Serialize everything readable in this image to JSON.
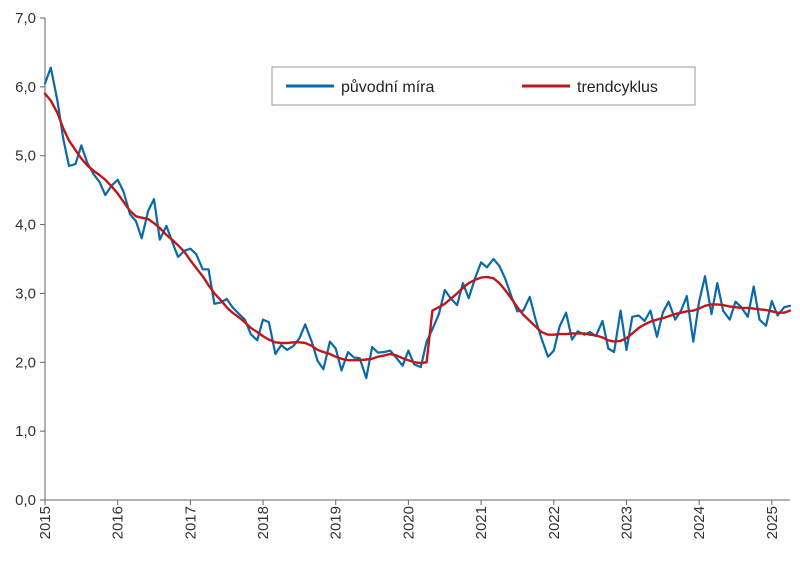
{
  "chart_data": {
    "type": "line",
    "ylim": [
      0,
      7
    ],
    "xlim": [
      2015,
      2025.25
    ],
    "y_ticks": [
      "0,0",
      "1,0",
      "2,0",
      "3,0",
      "4,0",
      "5,0",
      "6,0",
      "7,0"
    ],
    "x_ticks": [
      "2015",
      "2016",
      "2017",
      "2018",
      "2019",
      "2020",
      "2021",
      "2022",
      "2023",
      "2024",
      "2025"
    ],
    "grid": false,
    "legend_position": "top-right",
    "series": [
      {
        "name": "původní míra",
        "color": "#0a6aa8",
        "x": [
          2015.0,
          2015.08,
          2015.17,
          2015.25,
          2015.33,
          2015.42,
          2015.5,
          2015.58,
          2015.67,
          2015.75,
          2015.83,
          2015.92,
          2016.0,
          2016.08,
          2016.17,
          2016.25,
          2016.33,
          2016.42,
          2016.5,
          2016.58,
          2016.67,
          2016.75,
          2016.83,
          2016.92,
          2017.0,
          2017.08,
          2017.17,
          2017.25,
          2017.33,
          2017.42,
          2017.5,
          2017.58,
          2017.67,
          2017.75,
          2017.83,
          2017.92,
          2018.0,
          2018.08,
          2018.17,
          2018.25,
          2018.33,
          2018.42,
          2018.5,
          2018.58,
          2018.67,
          2018.75,
          2018.83,
          2018.92,
          2019.0,
          2019.08,
          2019.17,
          2019.25,
          2019.33,
          2019.42,
          2019.5,
          2019.58,
          2019.67,
          2019.75,
          2019.83,
          2019.92,
          2020.0,
          2020.08,
          2020.17,
          2020.25,
          2020.33,
          2020.42,
          2020.5,
          2020.58,
          2020.67,
          2020.75,
          2020.83,
          2020.92,
          2021.0,
          2021.08,
          2021.17,
          2021.25,
          2021.33,
          2021.42,
          2021.5,
          2021.58,
          2021.67,
          2021.75,
          2021.83,
          2021.92,
          2022.0,
          2022.08,
          2022.17,
          2022.25,
          2022.33,
          2022.42,
          2022.5,
          2022.58,
          2022.67,
          2022.75,
          2022.83,
          2022.92,
          2023.0,
          2023.08,
          2023.17,
          2023.25,
          2023.33,
          2023.42,
          2023.5,
          2023.58,
          2023.67,
          2023.75,
          2023.83,
          2023.92,
          2024.0,
          2024.08,
          2024.17,
          2024.25,
          2024.33,
          2024.42,
          2024.5,
          2024.58,
          2024.67,
          2024.75,
          2024.83,
          2024.92,
          2025.0,
          2025.08,
          2025.17,
          2025.25
        ],
        "y": [
          6.05,
          6.28,
          5.8,
          5.25,
          4.85,
          4.88,
          5.15,
          4.9,
          4.73,
          4.62,
          4.43,
          4.57,
          4.65,
          4.48,
          4.15,
          4.05,
          3.8,
          4.2,
          4.37,
          3.78,
          3.98,
          3.75,
          3.53,
          3.62,
          3.65,
          3.57,
          3.35,
          3.35,
          2.85,
          2.87,
          2.92,
          2.8,
          2.7,
          2.62,
          2.41,
          2.32,
          2.62,
          2.58,
          2.12,
          2.25,
          2.18,
          2.24,
          2.35,
          2.55,
          2.3,
          2.02,
          1.9,
          2.3,
          2.2,
          1.88,
          2.15,
          2.07,
          2.06,
          1.77,
          2.22,
          2.14,
          2.15,
          2.17,
          2.07,
          1.95,
          2.17,
          1.97,
          1.93,
          2.3,
          2.48,
          2.7,
          3.05,
          2.93,
          2.83,
          3.15,
          2.93,
          3.23,
          3.45,
          3.38,
          3.5,
          3.4,
          3.22,
          2.95,
          2.74,
          2.75,
          2.95,
          2.62,
          2.35,
          2.08,
          2.17,
          2.52,
          2.72,
          2.33,
          2.45,
          2.4,
          2.44,
          2.38,
          2.6,
          2.2,
          2.15,
          2.75,
          2.18,
          2.66,
          2.68,
          2.6,
          2.75,
          2.37,
          2.72,
          2.88,
          2.62,
          2.75,
          2.96,
          2.3,
          2.88,
          3.25,
          2.7,
          3.15,
          2.75,
          2.62,
          2.88,
          2.8,
          2.66,
          3.1,
          2.62,
          2.53,
          2.89,
          2.68,
          2.8,
          2.82
        ]
      },
      {
        "name": "trendcyklus",
        "color": "#c0171b",
        "x": [
          2015.0,
          2015.08,
          2015.17,
          2015.25,
          2015.33,
          2015.42,
          2015.5,
          2015.58,
          2015.67,
          2015.75,
          2015.83,
          2015.92,
          2016.0,
          2016.08,
          2016.17,
          2016.25,
          2016.33,
          2016.42,
          2016.5,
          2016.58,
          2016.67,
          2016.75,
          2016.83,
          2016.92,
          2017.0,
          2017.08,
          2017.17,
          2017.25,
          2017.33,
          2017.42,
          2017.5,
          2017.58,
          2017.67,
          2017.75,
          2017.83,
          2017.92,
          2018.0,
          2018.08,
          2018.17,
          2018.25,
          2018.33,
          2018.42,
          2018.5,
          2018.58,
          2018.67,
          2018.75,
          2018.83,
          2018.92,
          2019.0,
          2019.08,
          2019.17,
          2019.25,
          2019.33,
          2019.42,
          2019.5,
          2019.58,
          2019.67,
          2019.75,
          2019.83,
          2019.92,
          2020.0,
          2020.08,
          2020.17,
          2020.25,
          2020.33,
          2020.42,
          2020.5,
          2020.58,
          2020.67,
          2020.75,
          2020.83,
          2020.92,
          2021.0,
          2021.08,
          2021.17,
          2021.25,
          2021.33,
          2021.42,
          2021.5,
          2021.58,
          2021.67,
          2021.75,
          2021.83,
          2021.92,
          2022.0,
          2022.08,
          2022.17,
          2022.25,
          2022.33,
          2022.42,
          2022.5,
          2022.58,
          2022.67,
          2022.75,
          2022.83,
          2022.92,
          2023.0,
          2023.08,
          2023.17,
          2023.25,
          2023.33,
          2023.42,
          2023.5,
          2023.58,
          2023.67,
          2023.75,
          2023.83,
          2023.92,
          2024.0,
          2024.08,
          2024.17,
          2024.25,
          2024.33,
          2024.42,
          2024.5,
          2024.58,
          2024.67,
          2024.75,
          2024.83,
          2024.92,
          2025.0,
          2025.08,
          2025.17,
          2025.25
        ],
        "y": [
          5.9,
          5.8,
          5.62,
          5.4,
          5.22,
          5.08,
          4.96,
          4.86,
          4.78,
          4.72,
          4.65,
          4.55,
          4.45,
          4.33,
          4.2,
          4.12,
          4.1,
          4.08,
          4.02,
          3.95,
          3.85,
          3.78,
          3.7,
          3.6,
          3.48,
          3.37,
          3.25,
          3.12,
          3.0,
          2.9,
          2.8,
          2.72,
          2.65,
          2.58,
          2.5,
          2.44,
          2.38,
          2.33,
          2.29,
          2.28,
          2.28,
          2.29,
          2.29,
          2.28,
          2.24,
          2.18,
          2.15,
          2.12,
          2.08,
          2.05,
          2.03,
          2.03,
          2.03,
          2.04,
          2.05,
          2.08,
          2.1,
          2.12,
          2.1,
          2.06,
          2.03,
          2.0,
          1.99,
          2.0,
          2.75,
          2.8,
          2.85,
          2.92,
          3.0,
          3.08,
          3.15,
          3.2,
          3.23,
          3.24,
          3.22,
          3.15,
          3.05,
          2.92,
          2.8,
          2.69,
          2.6,
          2.52,
          2.44,
          2.4,
          2.4,
          2.41,
          2.41,
          2.42,
          2.42,
          2.42,
          2.4,
          2.39,
          2.36,
          2.32,
          2.3,
          2.31,
          2.35,
          2.42,
          2.5,
          2.55,
          2.59,
          2.62,
          2.64,
          2.67,
          2.7,
          2.72,
          2.74,
          2.75,
          2.78,
          2.82,
          2.84,
          2.84,
          2.83,
          2.81,
          2.8,
          2.79,
          2.79,
          2.78,
          2.77,
          2.76,
          2.74,
          2.72,
          2.72,
          2.75
        ]
      }
    ]
  }
}
